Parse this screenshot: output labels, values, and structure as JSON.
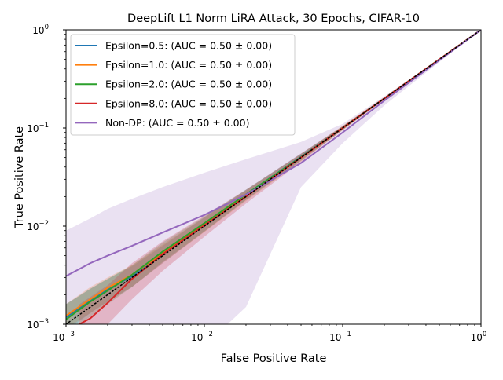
{
  "chart_data": {
    "type": "line",
    "title": "DeepLift L1 Norm LiRA Attack, 30 Epochs, CIFAR-10",
    "xlabel": "False Positive Rate",
    "ylabel": "True Positive Rate",
    "xscale": "log",
    "yscale": "log",
    "xlim": [
      0.001,
      1
    ],
    "ylim": [
      0.001,
      1
    ],
    "grid": false,
    "legend_position": "top-left",
    "xticks": [
      {
        "value": 0.001,
        "base": "10",
        "exp": "−3"
      },
      {
        "value": 0.01,
        "base": "10",
        "exp": "−2"
      },
      {
        "value": 0.1,
        "base": "10",
        "exp": "−1"
      },
      {
        "value": 1,
        "base": "10",
        "exp": "0"
      }
    ],
    "yticks": [
      {
        "value": 0.001,
        "base": "10",
        "exp": "−3"
      },
      {
        "value": 0.01,
        "base": "10",
        "exp": "−2"
      },
      {
        "value": 0.1,
        "base": "10",
        "exp": "−1"
      },
      {
        "value": 1,
        "base": "10",
        "exp": "0"
      }
    ],
    "series": [
      {
        "name": "Epsilon=0.5: (AUC = 0.50 ± 0.00)",
        "color": "#1f77b4",
        "x": [
          0.001,
          0.0015,
          0.002,
          0.003,
          0.005,
          0.01,
          0.02,
          0.05,
          0.1,
          0.2,
          0.5,
          1
        ],
        "y": [
          0.00118,
          0.00175,
          0.00225,
          0.0031,
          0.0052,
          0.0105,
          0.021,
          0.051,
          0.1,
          0.2,
          0.5,
          1
        ],
        "band_low": [
          0.00085,
          0.0013,
          0.0017,
          0.0024,
          0.0042,
          0.0088,
          0.0185,
          0.047,
          0.096,
          0.195,
          0.495,
          1
        ],
        "band_high": [
          0.0016,
          0.0023,
          0.0029,
          0.0039,
          0.0063,
          0.0123,
          0.0235,
          0.055,
          0.104,
          0.205,
          0.505,
          1
        ]
      },
      {
        "name": "Epsilon=1.0: (AUC = 0.50 ± 0.00)",
        "color": "#ff7f0e",
        "x": [
          0.001,
          0.0015,
          0.002,
          0.003,
          0.005,
          0.01,
          0.02,
          0.05,
          0.1,
          0.2,
          0.5,
          1
        ],
        "y": [
          0.00122,
          0.0018,
          0.00235,
          0.0032,
          0.0053,
          0.0104,
          0.0205,
          0.05,
          0.1,
          0.2,
          0.5,
          1
        ],
        "band_low": [
          0.0009,
          0.0013,
          0.0017,
          0.0024,
          0.0042,
          0.0087,
          0.018,
          0.046,
          0.095,
          0.195,
          0.495,
          1
        ],
        "band_high": [
          0.0016,
          0.0024,
          0.003,
          0.004,
          0.0065,
          0.0122,
          0.023,
          0.054,
          0.105,
          0.205,
          0.505,
          1
        ]
      },
      {
        "name": "Epsilon=2.0: (AUC = 0.50 ± 0.00)",
        "color": "#2ca02c",
        "x": [
          0.001,
          0.0015,
          0.002,
          0.003,
          0.005,
          0.01,
          0.02,
          0.05,
          0.1,
          0.2,
          0.5,
          1
        ],
        "y": [
          0.00112,
          0.0017,
          0.0022,
          0.0032,
          0.0055,
          0.0107,
          0.021,
          0.0505,
          0.1,
          0.2,
          0.5,
          1
        ],
        "band_low": [
          0.0008,
          0.0012,
          0.0016,
          0.0024,
          0.0043,
          0.0088,
          0.0185,
          0.0465,
          0.096,
          0.195,
          0.495,
          1
        ],
        "band_high": [
          0.0016,
          0.0023,
          0.0029,
          0.004,
          0.0068,
          0.0125,
          0.0235,
          0.0545,
          0.104,
          0.205,
          0.505,
          1
        ]
      },
      {
        "name": "Epsilon=8.0: (AUC = 0.50 ± 0.00)",
        "color": "#d62728",
        "x": [
          0.00125,
          0.0015,
          0.002,
          0.003,
          0.005,
          0.01,
          0.02,
          0.05,
          0.1,
          0.2,
          0.5,
          1
        ],
        "y": [
          0.001,
          0.00115,
          0.00165,
          0.0029,
          0.0052,
          0.0102,
          0.02,
          0.05,
          0.1,
          0.2,
          0.5,
          1
        ],
        "band_low": [
          0.0006,
          0.0007,
          0.001,
          0.0018,
          0.0035,
          0.0078,
          0.017,
          0.045,
          0.095,
          0.195,
          0.495,
          1
        ],
        "band_high": [
          0.0016,
          0.0019,
          0.0025,
          0.0042,
          0.007,
          0.0128,
          0.0235,
          0.055,
          0.105,
          0.205,
          0.505,
          1
        ]
      },
      {
        "name": "Non-DP: (AUC = 0.50 ± 0.00)",
        "color": "#9467bd",
        "x": [
          0.001,
          0.0015,
          0.002,
          0.003,
          0.005,
          0.01,
          0.02,
          0.05,
          0.1,
          0.2,
          0.5,
          1
        ],
        "y": [
          0.0031,
          0.0042,
          0.005,
          0.0063,
          0.0086,
          0.013,
          0.021,
          0.044,
          0.09,
          0.19,
          0.49,
          1
        ],
        "band_low": [
          0.0006,
          0.0006,
          0.0006,
          0.0006,
          0.0006,
          0.0006,
          0.0015,
          0.025,
          0.07,
          0.17,
          0.47,
          1
        ],
        "band_high": [
          0.009,
          0.012,
          0.015,
          0.019,
          0.025,
          0.035,
          0.048,
          0.072,
          0.11,
          0.21,
          0.51,
          1
        ]
      }
    ],
    "reference_line": {
      "x": [
        0.001,
        1
      ],
      "y": [
        0.001,
        1
      ],
      "style": "dotted",
      "color": "#000000"
    }
  }
}
